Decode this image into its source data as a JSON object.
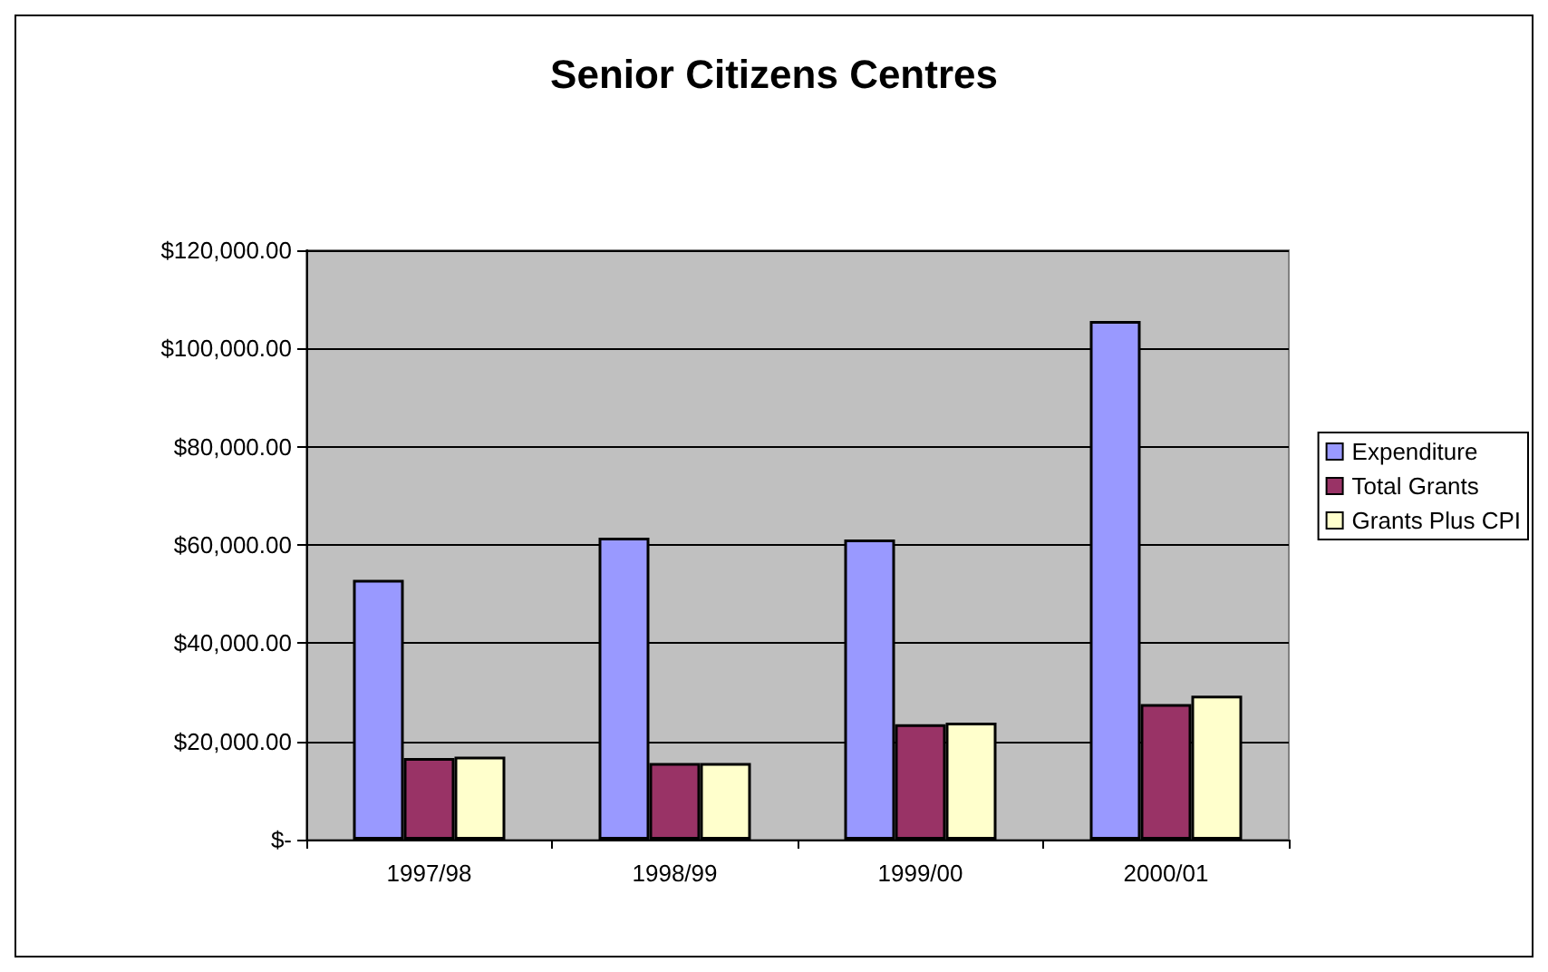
{
  "chart_data": {
    "type": "bar",
    "title": "Senior Citizens Centres",
    "categories": [
      "1997/98",
      "1998/99",
      "1999/00",
      "2000/01"
    ],
    "series": [
      {
        "name": "Expenditure",
        "color": "#9999ff",
        "values": [
          52900,
          61500,
          61100,
          105600
        ]
      },
      {
        "name": "Total Grants",
        "color": "#993366",
        "values": [
          16600,
          15600,
          23500,
          27600
        ]
      },
      {
        "name": "Grants Plus CPI",
        "color": "#ffffcc",
        "values": [
          16900,
          15600,
          23800,
          29300
        ]
      }
    ],
    "ylim": [
      0,
      120000
    ],
    "yticks": [
      {
        "value": 0,
        "label": "$-"
      },
      {
        "value": 20000,
        "label": "$20,000.00"
      },
      {
        "value": 40000,
        "label": "$40,000.00"
      },
      {
        "value": 60000,
        "label": "$60,000.00"
      },
      {
        "value": 80000,
        "label": "$80,000.00"
      },
      {
        "value": 100000,
        "label": "$100,000.00"
      },
      {
        "value": 120000,
        "label": "$120,000.00"
      }
    ],
    "grid": "y",
    "legend": "right"
  }
}
